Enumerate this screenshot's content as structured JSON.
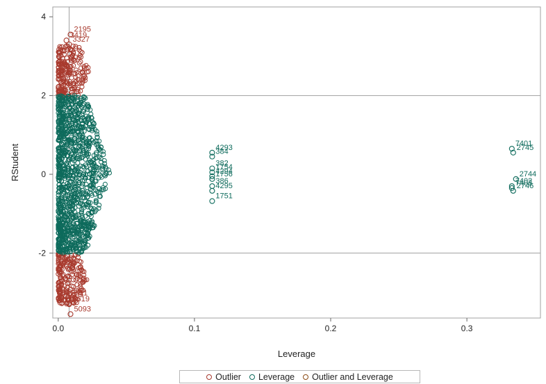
{
  "chart_data": {
    "type": "scatter",
    "xlabel": "Leverage",
    "ylabel": "RStudent",
    "xlim": [
      -0.004,
      0.354
    ],
    "ylim": [
      -3.65,
      4.25
    ],
    "x_ticks": [
      0.0,
      0.1,
      0.2,
      0.3
    ],
    "x_tick_labels": [
      "0.0",
      "0.1",
      "0.2",
      "0.3"
    ],
    "y_ticks": [
      -2,
      0,
      2,
      4
    ],
    "y_tick_labels": [
      "-2",
      "0",
      "2",
      "4"
    ],
    "reference_lines_y": [
      -2,
      2
    ],
    "reference_line_x": 0.008,
    "legend_position": "bottom",
    "series": [
      {
        "name": "Outlier",
        "color": "#a83a2e",
        "clusters": [
          {
            "x_range": [
              0.0,
              0.023
            ],
            "y_range": [
              2.0,
              3.3
            ]
          },
          {
            "x_range": [
              0.0,
              0.022
            ],
            "y_range": [
              -3.3,
              -2.0
            ]
          }
        ],
        "points": [
          {
            "x": 0.009,
            "y": 3.55,
            "label": "2195"
          },
          {
            "x": 0.006,
            "y": 3.4,
            "label": "3419"
          },
          {
            "x": 0.008,
            "y": 3.3,
            "label": "3327"
          },
          {
            "x": 0.007,
            "y": -3.15,
            "label": "5011"
          },
          {
            "x": 0.008,
            "y": -3.3,
            "label": "5619"
          },
          {
            "x": 0.009,
            "y": -3.55,
            "label": "5093"
          }
        ]
      },
      {
        "name": "Leverage",
        "color": "#0e6b5c",
        "clusters": [
          {
            "x_range": [
              0.0,
              0.038
            ],
            "y_range": [
              -2.0,
              2.0
            ]
          }
        ],
        "points": [
          {
            "x": 0.113,
            "y": 0.55,
            "label": "4293"
          },
          {
            "x": 0.113,
            "y": 0.45,
            "label": "384"
          },
          {
            "x": 0.113,
            "y": 0.15,
            "label": "382"
          },
          {
            "x": 0.113,
            "y": 0.05,
            "label": "1754"
          },
          {
            "x": 0.113,
            "y": -0.05,
            "label": "4294"
          },
          {
            "x": 0.113,
            "y": -0.12,
            "label": "1756"
          },
          {
            "x": 0.113,
            "y": -0.3,
            "label": "386"
          },
          {
            "x": 0.113,
            "y": -0.42,
            "label": "4295"
          },
          {
            "x": 0.113,
            "y": -0.68,
            "label": "1751"
          },
          {
            "x": 0.333,
            "y": 0.65,
            "label": "7401"
          },
          {
            "x": 0.334,
            "y": 0.55,
            "label": "2745"
          },
          {
            "x": 0.336,
            "y": -0.12,
            "label": "2744"
          },
          {
            "x": 0.333,
            "y": -0.3,
            "label": "7402"
          },
          {
            "x": 0.333,
            "y": -0.35,
            "label": "7403"
          },
          {
            "x": 0.334,
            "y": -0.42,
            "label": "2746"
          }
        ]
      },
      {
        "name": "Outlier and Leverage",
        "color": "#8a4a14",
        "points": []
      }
    ]
  },
  "legend": {
    "items": [
      {
        "label": "Outlier",
        "color": "#a83a2e"
      },
      {
        "label": "Leverage",
        "color": "#0e6b5c"
      },
      {
        "label": "Outlier and Leverage",
        "color": "#8a4a14"
      }
    ]
  }
}
